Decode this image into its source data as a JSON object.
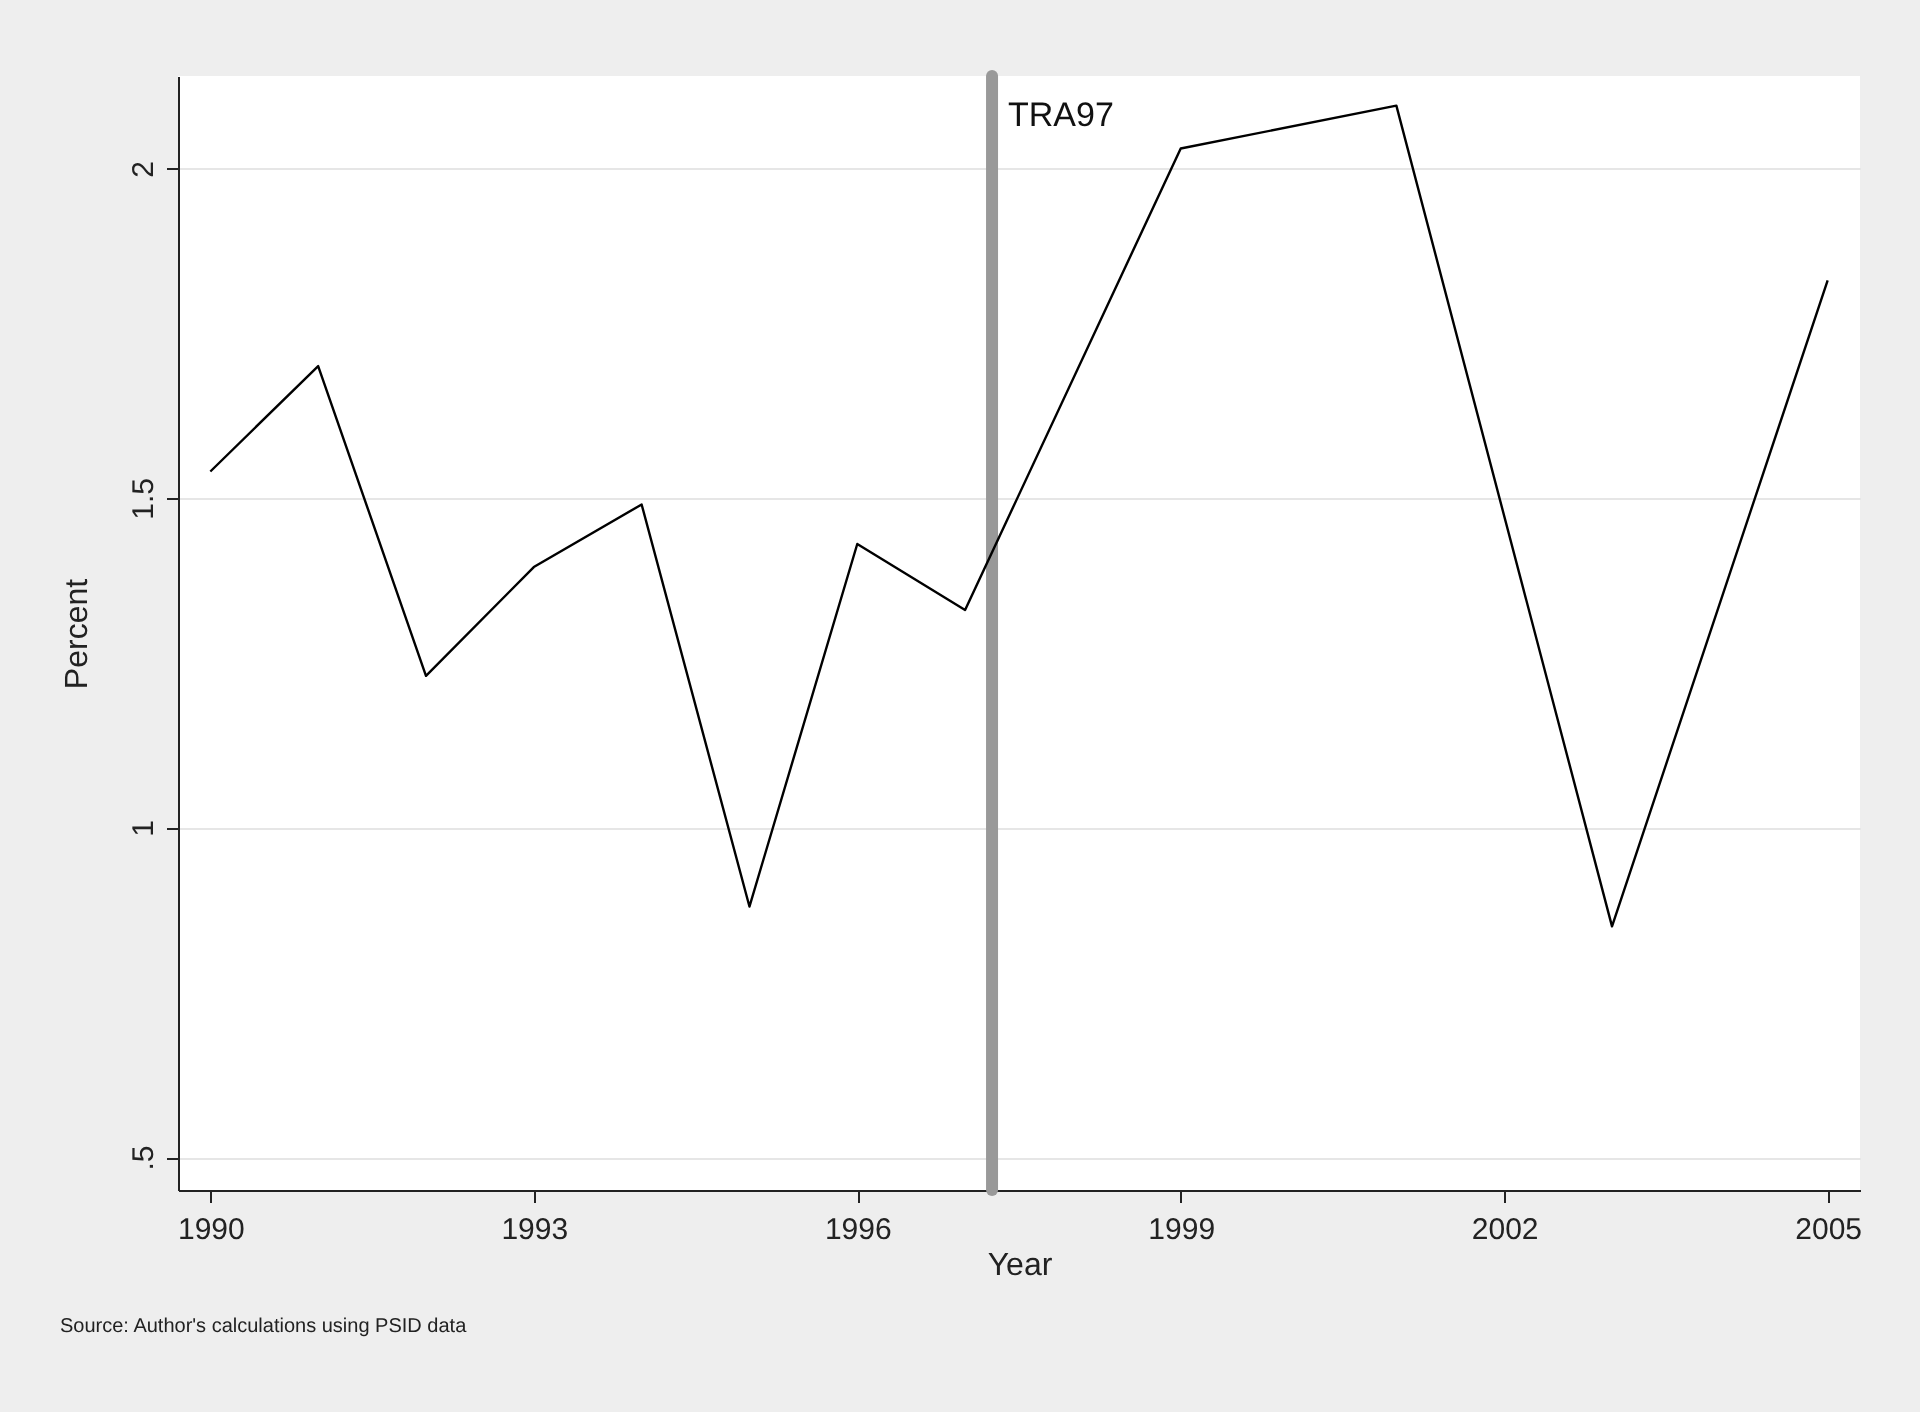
{
  "chart_data": {
    "type": "line",
    "xlabel": "Year",
    "ylabel": "Percent",
    "x": [
      1990,
      1991,
      1992,
      1993,
      1994,
      1995,
      1996,
      1997,
      1999,
      2001,
      2003,
      2005
    ],
    "series": [
      {
        "color": "#000000",
        "values": [
          1.54,
          1.7,
          1.23,
          1.395,
          1.49,
          0.88,
          1.43,
          1.33,
          2.03,
          2.095,
          0.85,
          1.83
        ]
      }
    ],
    "xlim": [
      1989.7,
      2005.3
    ],
    "xticks": [
      1990,
      1993,
      1996,
      1999,
      2002,
      2005
    ],
    "ylim": [
      0.45,
      2.14
    ],
    "yticks": [
      {
        "value": 0.5,
        "label": ".5"
      },
      {
        "value": 1,
        "label": "1"
      },
      {
        "value": 1.5,
        "label": "1.5"
      },
      {
        "value": 2,
        "label": "2"
      }
    ],
    "grid": "y",
    "ref_lines": [
      {
        "axis": "x",
        "value": 1997.25,
        "label": "TRA97",
        "color": "#999999"
      }
    ],
    "annotations": [
      "Source: Author's calculations using PSID data"
    ]
  }
}
